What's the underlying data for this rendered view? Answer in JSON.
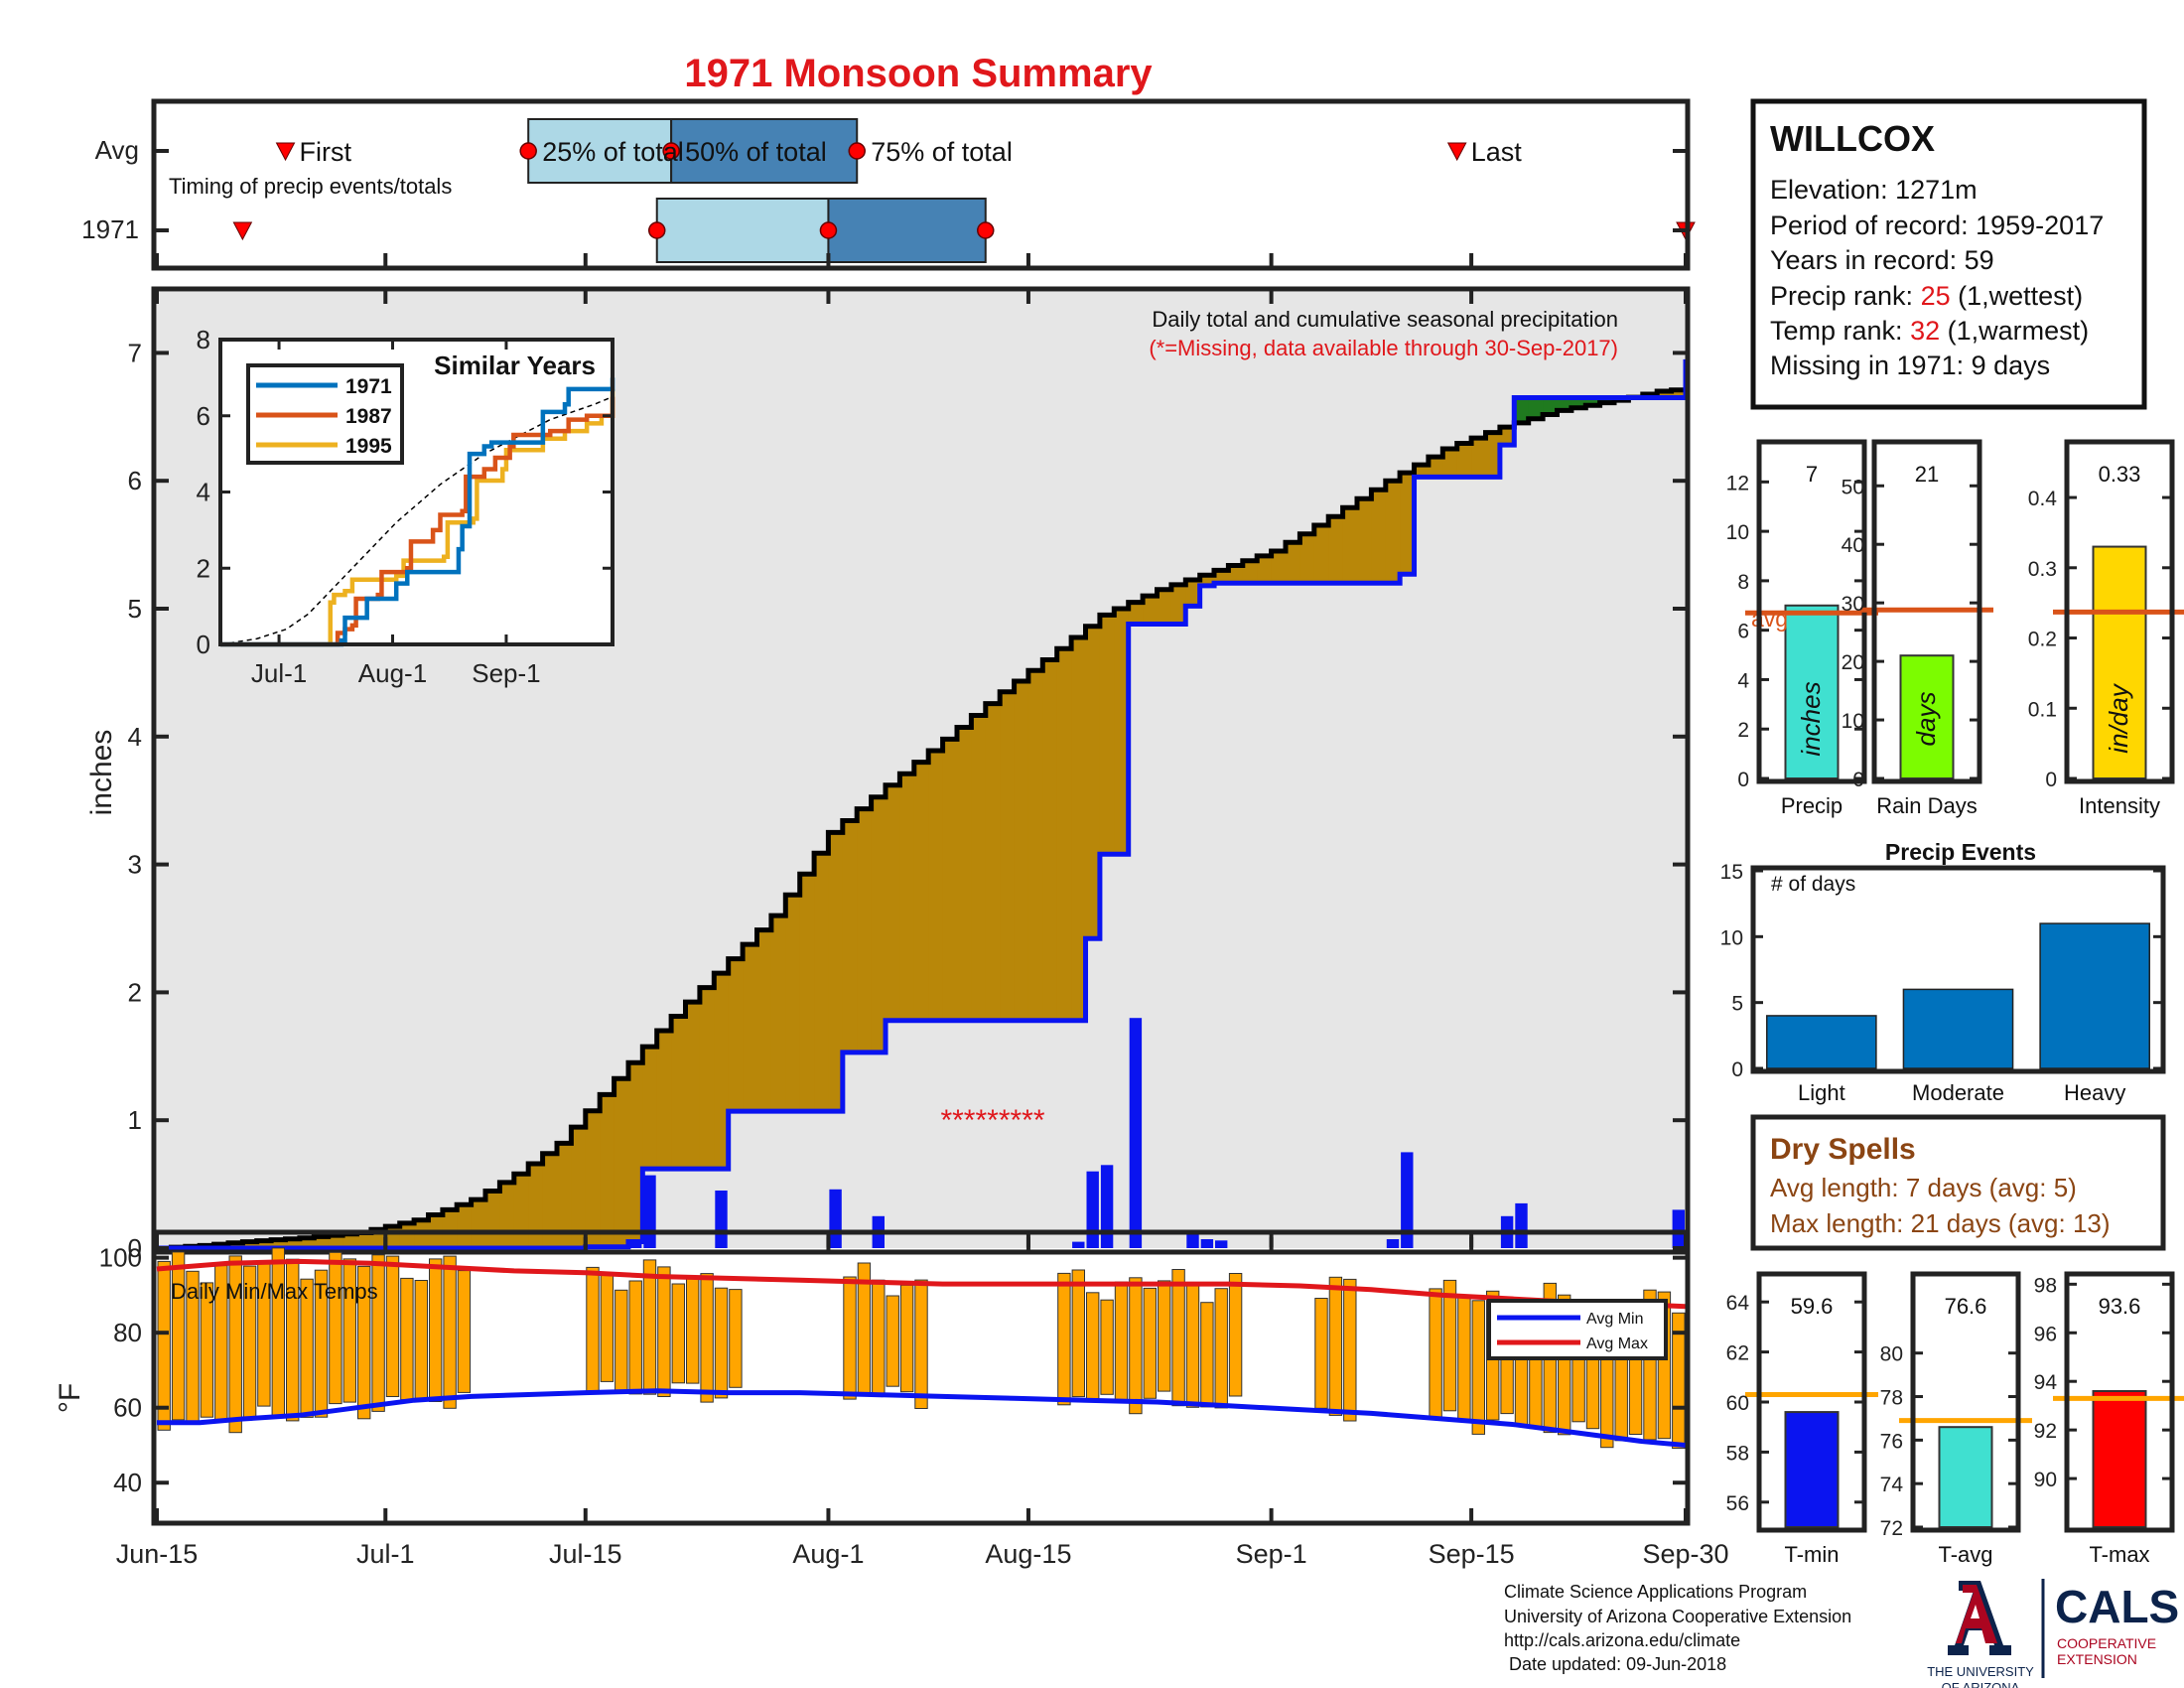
{
  "title": "1971 Monsoon Summary",
  "timing": {
    "rows": [
      "Avg",
      "1971"
    ],
    "note": "Timing of precip events/totals",
    "avg_labels": {
      "first": "First",
      "q25": "25% of total",
      "q50": "50% of total",
      "q75": "75% of total",
      "last": "Last"
    },
    "avg": {
      "first": 9,
      "q25": 26,
      "q50": 36,
      "q75": 49,
      "last": 91
    },
    "y1971": {
      "first": 6,
      "q25": 35,
      "q50": 47,
      "q75": 58,
      "last": 107
    }
  },
  "station": {
    "name": "WILLCOX",
    "lines": [
      {
        "label": "Elevation: 1271m",
        "value": "",
        "tail": ""
      },
      {
        "label": "Period of record: 1959-2017",
        "value": "",
        "tail": ""
      },
      {
        "label": "Years in record: 59",
        "value": "",
        "tail": ""
      },
      {
        "label": "Precip rank: ",
        "value": "25",
        "tail": " (1,wettest)"
      },
      {
        "label": "Temp rank: ",
        "value": "32",
        "tail": " (1,warmest)"
      },
      {
        "label": "Missing in 1971: 9 days",
        "value": "",
        "tail": ""
      }
    ],
    "highlight_color": "#e0171b"
  },
  "chart_data": [
    {
      "id": "main_precip",
      "type": "area",
      "ylabel": "inches",
      "ylim": [
        0,
        7.5
      ],
      "yticks": [
        0,
        1,
        2,
        3,
        4,
        5,
        6,
        7
      ],
      "x_day_range": [
        0,
        107
      ],
      "xticks": [
        {
          "label": "Jun-15",
          "day": 0
        },
        {
          "label": "Jul-1",
          "day": 16
        },
        {
          "label": "Jul-15",
          "day": 30
        },
        {
          "label": "Aug-1",
          "day": 47
        },
        {
          "label": "Aug-15",
          "day": 61
        },
        {
          "label": "Sep-1",
          "day": 78
        },
        {
          "label": "Sep-15",
          "day": 92
        },
        {
          "label": "Sep-30",
          "day": 107
        }
      ],
      "annotation": "Daily total and cumulative seasonal precipitation",
      "annotation2": "(*=Missing, data available through 30-Sep-2017)",
      "missing_marker": "*********",
      "missing_days": [
        54,
        55,
        56,
        57,
        58,
        59,
        60,
        61,
        62
      ],
      "avg_cumulative": [
        [
          0,
          0
        ],
        [
          3,
          0.02
        ],
        [
          6,
          0.05
        ],
        [
          10,
          0.08
        ],
        [
          14,
          0.12
        ],
        [
          18,
          0.22
        ],
        [
          22,
          0.38
        ],
        [
          25,
          0.58
        ],
        [
          28,
          0.82
        ],
        [
          31,
          1.2
        ],
        [
          35,
          1.7
        ],
        [
          39,
          2.15
        ],
        [
          43,
          2.6
        ],
        [
          47,
          3.25
        ],
        [
          51,
          3.62
        ],
        [
          55,
          3.98
        ],
        [
          59,
          4.35
        ],
        [
          62,
          4.6
        ],
        [
          66,
          4.95
        ],
        [
          70,
          5.15
        ],
        [
          74,
          5.3
        ],
        [
          78,
          5.45
        ],
        [
          82,
          5.72
        ],
        [
          86,
          6.0
        ],
        [
          90,
          6.25
        ],
        [
          94,
          6.42
        ],
        [
          98,
          6.55
        ],
        [
          102,
          6.63
        ],
        [
          105,
          6.7
        ],
        [
          107,
          6.72
        ]
      ],
      "y1971_cumulative": [
        [
          0,
          0
        ],
        [
          30,
          0.01
        ],
        [
          33,
          0.05
        ],
        [
          34,
          0.62
        ],
        [
          39,
          0.62
        ],
        [
          40,
          1.07
        ],
        [
          47,
          1.07
        ],
        [
          48,
          1.53
        ],
        [
          50,
          1.53
        ],
        [
          51,
          1.78
        ],
        [
          64,
          1.78
        ],
        [
          65,
          2.42
        ],
        [
          66,
          3.08
        ],
        [
          67,
          3.08
        ],
        [
          68,
          4.88
        ],
        [
          71,
          4.88
        ],
        [
          72,
          5.02
        ],
        [
          73,
          5.18
        ],
        [
          74,
          5.2
        ],
        [
          86,
          5.2
        ],
        [
          87,
          5.27
        ],
        [
          88,
          6.03
        ],
        [
          93,
          6.03
        ],
        [
          94,
          6.28
        ],
        [
          95,
          6.65
        ],
        [
          106,
          6.65
        ],
        [
          107,
          6.95
        ]
      ],
      "daily_bars": [
        {
          "day": 33,
          "value": 0.05
        },
        {
          "day": 34,
          "value": 0.57
        },
        {
          "day": 39,
          "value": 0.45
        },
        {
          "day": 47,
          "value": 0.46
        },
        {
          "day": 50,
          "value": 0.25
        },
        {
          "day": 64,
          "value": 0.05
        },
        {
          "day": 65,
          "value": 0.6
        },
        {
          "day": 66,
          "value": 0.65
        },
        {
          "day": 68,
          "value": 1.8
        },
        {
          "day": 72,
          "value": 0.14
        },
        {
          "day": 73,
          "value": 0.07
        },
        {
          "day": 74,
          "value": 0.06
        },
        {
          "day": 86,
          "value": 0.07
        },
        {
          "day": 87,
          "value": 0.75
        },
        {
          "day": 94,
          "value": 0.25
        },
        {
          "day": 95,
          "value": 0.35
        },
        {
          "day": 106,
          "value": 0.3
        }
      ],
      "colors": {
        "avg_line": "#000000",
        "y1971_line": "#0a14f0",
        "deficit_fill": "#b88709",
        "surplus_fill": "#1f7a1f",
        "background_fill": "#e6e6e6",
        "bars": "#0a14f0"
      }
    },
    {
      "id": "similar_years",
      "type": "line",
      "title": "Similar Years",
      "ylim": [
        0,
        8
      ],
      "yticks": [
        0,
        2,
        4,
        6,
        8
      ],
      "xticks": [
        {
          "label": "Jul-1",
          "day": 16
        },
        {
          "label": "Aug-1",
          "day": 47
        },
        {
          "label": "Sep-1",
          "day": 78
        }
      ],
      "series": [
        {
          "name": "1971",
          "color": "#0072bd",
          "points": [
            [
              0,
              0
            ],
            [
              30,
              0
            ],
            [
              33,
              0.1
            ],
            [
              34,
              0.7
            ],
            [
              39,
              0.7
            ],
            [
              40,
              1.2
            ],
            [
              47,
              1.2
            ],
            [
              48,
              1.6
            ],
            [
              50,
              1.6
            ],
            [
              51,
              1.9
            ],
            [
              64,
              1.9
            ],
            [
              65,
              2.5
            ],
            [
              66,
              3.1
            ],
            [
              68,
              5.0
            ],
            [
              72,
              5.2
            ],
            [
              74,
              5.3
            ],
            [
              86,
              5.3
            ],
            [
              88,
              6.1
            ],
            [
              94,
              6.3
            ],
            [
              95,
              6.7
            ],
            [
              106,
              6.7
            ],
            [
              107,
              7.0
            ]
          ]
        },
        {
          "name": "1987",
          "color": "#d95319",
          "points": [
            [
              0,
              0
            ],
            [
              31,
              0
            ],
            [
              32,
              0.3
            ],
            [
              34,
              0.4
            ],
            [
              36,
              0.5
            ],
            [
              37,
              1.2
            ],
            [
              43,
              1.3
            ],
            [
              44,
              1.9
            ],
            [
              51,
              2.0
            ],
            [
              52,
              2.7
            ],
            [
              58,
              3.0
            ],
            [
              60,
              3.4
            ],
            [
              66,
              3.5
            ],
            [
              67,
              4.4
            ],
            [
              72,
              4.6
            ],
            [
              75,
              4.9
            ],
            [
              79,
              5.2
            ],
            [
              80,
              5.5
            ],
            [
              90,
              5.6
            ],
            [
              95,
              5.9
            ],
            [
              100,
              6.0
            ],
            [
              107,
              6.5
            ]
          ]
        },
        {
          "name": "1995",
          "color": "#edb120",
          "points": [
            [
              0,
              0
            ],
            [
              29,
              0
            ],
            [
              30,
              1.1
            ],
            [
              31,
              1.3
            ],
            [
              34,
              1.4
            ],
            [
              36,
              1.7
            ],
            [
              48,
              1.8
            ],
            [
              50,
              2.2
            ],
            [
              61,
              2.3
            ],
            [
              62,
              3.2
            ],
            [
              69,
              3.3
            ],
            [
              70,
              4.3
            ],
            [
              77,
              4.6
            ],
            [
              78,
              5.1
            ],
            [
              88,
              5.4
            ],
            [
              94,
              5.6
            ],
            [
              100,
              5.8
            ],
            [
              104,
              6.0
            ],
            [
              107,
              6.7
            ]
          ]
        }
      ],
      "avg_dashed_points": [
        [
          0,
          0
        ],
        [
          10,
          0.15
        ],
        [
          18,
          0.4
        ],
        [
          24,
          0.8
        ],
        [
          30,
          1.4
        ],
        [
          36,
          2.0
        ],
        [
          42,
          2.6
        ],
        [
          48,
          3.2
        ],
        [
          54,
          3.7
        ],
        [
          60,
          4.2
        ],
        [
          66,
          4.6
        ],
        [
          72,
          5.0
        ],
        [
          78,
          5.3
        ],
        [
          84,
          5.6
        ],
        [
          90,
          5.9
        ],
        [
          96,
          6.1
        ],
        [
          102,
          6.3
        ],
        [
          107,
          6.5
        ]
      ]
    },
    {
      "id": "precip_bar",
      "type": "bar",
      "xlabel": "Precip",
      "value": 7,
      "value_label": "7",
      "avg": 6.7,
      "avg_label": "avg",
      "bar_text": "inches",
      "ylim": [
        0,
        13.5
      ],
      "yticks": [
        0,
        2,
        4,
        6,
        8,
        10,
        12
      ],
      "color": "#40e0d0"
    },
    {
      "id": "raindays_bar",
      "type": "bar",
      "xlabel": "Rain Days",
      "value": 21,
      "value_label": "21",
      "avg": 28.8,
      "bar_text": "days",
      "ylim": [
        0,
        57
      ],
      "yticks": [
        0,
        10,
        20,
        30,
        40,
        50
      ],
      "color": "#7cfc00"
    },
    {
      "id": "intensity_bar",
      "type": "bar",
      "xlabel": "Intensity",
      "value": 0.33,
      "value_label": "0.33",
      "avg": 0.237,
      "bar_text": "in/day",
      "ylim": [
        0,
        0.475
      ],
      "yticks": [
        0,
        0.1,
        0.2,
        0.3,
        0.4
      ],
      "color": "#ffd700"
    },
    {
      "id": "precip_events",
      "type": "bar",
      "title": "Precip Events",
      "ylabel_inside": "# of days",
      "categories": [
        "Light",
        "Moderate",
        "Heavy"
      ],
      "values": [
        4,
        6,
        11
      ],
      "ylim": [
        0,
        15
      ],
      "yticks": [
        0,
        5,
        10,
        15
      ],
      "color": "#0072bd"
    },
    {
      "id": "temps",
      "type": "bar",
      "title": "Daily Min/Max Temps",
      "ylabel": "°F",
      "ylim": [
        30,
        106
      ],
      "yticks": [
        40,
        60,
        80,
        100
      ],
      "legend": [
        "Avg Min",
        "Avg Max"
      ],
      "legend_placement": "top-right",
      "gap_days": [
        22,
        23,
        24,
        25,
        26,
        27,
        28,
        29,
        41,
        42,
        43,
        44,
        45,
        46,
        47,
        54,
        55,
        56,
        57,
        58,
        59,
        60,
        61,
        62,
        76,
        77,
        78,
        79,
        80,
        84,
        85,
        86,
        87,
        88
      ],
      "avg_min_points": [
        [
          0,
          56
        ],
        [
          3,
          56
        ],
        [
          6,
          57
        ],
        [
          10,
          58
        ],
        [
          14,
          60
        ],
        [
          18,
          62
        ],
        [
          22,
          63
        ],
        [
          26,
          63.5
        ],
        [
          30,
          64
        ],
        [
          35,
          64.5
        ],
        [
          40,
          64
        ],
        [
          45,
          64
        ],
        [
          50,
          63.5
        ],
        [
          55,
          63
        ],
        [
          60,
          62.5
        ],
        [
          65,
          62
        ],
        [
          70,
          61.5
        ],
        [
          75,
          60.5
        ],
        [
          80,
          59.5
        ],
        [
          85,
          58.5
        ],
        [
          90,
          57
        ],
        [
          95,
          55.5
        ],
        [
          100,
          53
        ],
        [
          104,
          51
        ],
        [
          107,
          50
        ]
      ],
      "avg_max_points": [
        [
          0,
          97
        ],
        [
          5,
          98.5
        ],
        [
          10,
          99
        ],
        [
          15,
          98.5
        ],
        [
          20,
          97.5
        ],
        [
          25,
          96.5
        ],
        [
          30,
          96
        ],
        [
          35,
          95
        ],
        [
          40,
          94.5
        ],
        [
          45,
          94
        ],
        [
          50,
          93.5
        ],
        [
          55,
          93
        ],
        [
          60,
          93
        ],
        [
          65,
          93
        ],
        [
          70,
          93
        ],
        [
          75,
          93
        ],
        [
          80,
          92.5
        ],
        [
          85,
          91.5
        ],
        [
          90,
          90
        ],
        [
          95,
          89
        ],
        [
          100,
          88
        ],
        [
          104,
          87.5
        ],
        [
          107,
          87
        ]
      ],
      "bar_color": "#ffa500",
      "avg_min_color": "#0a14f0",
      "avg_max_color": "#e0171b"
    },
    {
      "id": "tmin_bar",
      "type": "bar",
      "xlabel": "T-min",
      "value": 59.6,
      "value_label": "59.6",
      "avg": 60.3,
      "ylim": [
        55,
        65
      ],
      "yticks": [
        56,
        58,
        60,
        62,
        64
      ],
      "color": "#0a14f0"
    },
    {
      "id": "tavg_bar",
      "type": "bar",
      "xlabel": "T-avg",
      "value": 76.6,
      "value_label": "76.6",
      "avg": 76.9,
      "ylim": [
        72,
        83.5
      ],
      "yticks": [
        72,
        74,
        76,
        78,
        80
      ],
      "color": "#40e0d0"
    },
    {
      "id": "tmax_bar",
      "type": "bar",
      "xlabel": "T-max",
      "value": 93.6,
      "value_label": "93.6",
      "avg": 93.3,
      "ylim": [
        88,
        98.3
      ],
      "yticks": [
        90,
        92,
        94,
        96,
        98
      ],
      "color": "#ff0000"
    }
  ],
  "dry_spells": {
    "title": "Dry Spells",
    "avg_line": "Avg length: 7 days (avg: 5)",
    "max_line": "Max length: 21 days (avg: 13)",
    "color": "#8b4513"
  },
  "footer": {
    "lines": [
      "Climate Science Applications Program",
      "University of Arizona Cooperative Extension",
      "http://cals.arizona.edu/climate",
      " Date updated: 09-Jun-2018"
    ]
  },
  "logo_ua": {
    "line1": "THE UNIVERSITY",
    "line2": "OF ARIZONA",
    "color_red": "#ab0520",
    "color_blue": "#0c234b"
  },
  "logo_cals": {
    "name": "CALS",
    "line1": "COOPERATIVE",
    "line2": "EXTENSION",
    "color_blue": "#0c234b",
    "color_red": "#ab0520"
  },
  "colors": {
    "title": "#e0171b",
    "axis": "#222222",
    "avg_orange": "#ffa500",
    "avg_brick": "#d95319",
    "timing_light": "#add8e6",
    "timing_dark": "#4682b4",
    "marker_red": "#ff0000"
  }
}
